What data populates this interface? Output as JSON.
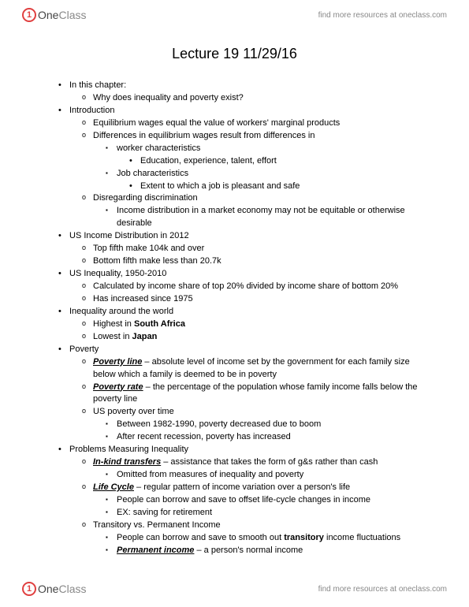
{
  "brand": {
    "logo1": "One",
    "logo2": "Class",
    "tagline": "find more resources at oneclass.com"
  },
  "title": "Lecture 19 11/29/16",
  "outline": [
    {
      "text": "In this chapter:",
      "children": [
        {
          "text": "Why does inequality and poverty exist?"
        }
      ]
    },
    {
      "text": "Introduction",
      "children": [
        {
          "text": "Equilibrium wages equal the value of workers' marginal products"
        },
        {
          "text": "Differences in equilibrium wages result from differences in",
          "children": [
            {
              "text": "worker characteristics",
              "children": [
                {
                  "text": "Education, experience, talent, effort"
                }
              ]
            },
            {
              "text": "Job characteristics",
              "children": [
                {
                  "text": "Extent to which a job is pleasant and safe"
                }
              ]
            }
          ]
        },
        {
          "text": "Disregarding discrimination",
          "children": [
            {
              "text": "Income distribution in a market economy may not be equitable or otherwise desirable"
            }
          ]
        }
      ]
    },
    {
      "text": "US Income Distribution in 2012",
      "children": [
        {
          "text": "Top fifth make 104k and over"
        },
        {
          "text": "Bottom fifth make less than 20.7k"
        }
      ]
    },
    {
      "text": "US Inequality, 1950-2010",
      "children": [
        {
          "text": "Calculated by income share of top 20% divided by income share of bottom 20%"
        },
        {
          "text": "Has increased since 1975"
        }
      ]
    },
    {
      "text": "Inequality around the world",
      "children": [
        {
          "html": "Highest in <span class='bold'>South Africa</span>"
        },
        {
          "html": "Lowest in <span class='bold'>Japan</span>"
        }
      ]
    },
    {
      "text": "Poverty",
      "children": [
        {
          "html": "<span class='biu'>Poverty line</span> – absolute level of income set by the government for each family size below which a family is deemed to be in poverty"
        },
        {
          "html": "<span class='biu'>Poverty rate</span> – the percentage of the population whose family income falls below the poverty line"
        },
        {
          "text": "US poverty over time",
          "children": [
            {
              "text": "Between 1982-1990, poverty decreased due to boom"
            },
            {
              "text": "After recent recession, poverty has increased"
            }
          ]
        }
      ]
    },
    {
      "text": "Problems Measuring Inequality",
      "children": [
        {
          "html": "<span class='biu'>In-kind transfers</span> – assistance that takes the form of g&s rather than cash",
          "children": [
            {
              "text": "Omitted from measures of inequality and poverty"
            }
          ]
        },
        {
          "html": "<span class='biu'>Life Cycle</span> – regular pattern of income variation over a person's life",
          "children": [
            {
              "text": "People can borrow and save to offset life-cycle changes in income"
            },
            {
              "text": "EX: saving for retirement"
            }
          ]
        },
        {
          "text": "Transitory vs. Permanent Income",
          "children": [
            {
              "html": "People can borrow and save to smooth out <span class='bold'>transitory</span> income fluctuations"
            },
            {
              "html": "<span class='biu'>Permanent income</span> – a person's normal income"
            }
          ]
        }
      ]
    }
  ]
}
